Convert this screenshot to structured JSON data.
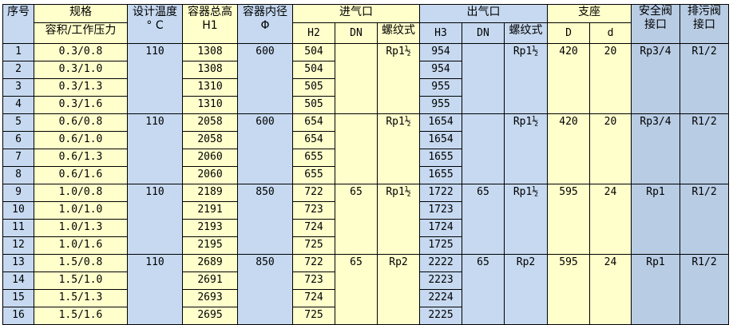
{
  "header": {
    "seq": "序号",
    "spec": "规格",
    "spec_sub": "容积/工作压力",
    "temp": "设计温度",
    "temp_unit": "° C",
    "height": "容器总高",
    "height_sub": "H1",
    "diameter": "容器内径",
    "diameter_sub": "Φ",
    "inlet": "进气口",
    "inlet_h": "H2",
    "inlet_dn": "DN",
    "inlet_thread": "螺纹式",
    "outlet": "出气口",
    "outlet_h": "H3",
    "outlet_dn": "DN",
    "outlet_thread": "螺纹式",
    "support": "支座",
    "support_D": "D",
    "support_d": "d",
    "safety": "安全阀接口",
    "drain": "排污阀接口"
  },
  "colors": {
    "yellow": "#ffffcc",
    "blue": "#c6d9f0",
    "dark_blue": "#b8cce4"
  },
  "groups": [
    {
      "temp": "110",
      "diameter": "600",
      "inlet_dn": "",
      "inlet_thread": "Rp1½",
      "outlet_dn": "",
      "outlet_thread": "Rp1½",
      "D": "420",
      "d": "20",
      "safety": "Rp3/4",
      "drain": "R1/2",
      "rows": [
        {
          "seq": "1",
          "spec": "0.3/0.8",
          "h1": "1308",
          "h2": "504",
          "h3": "954"
        },
        {
          "seq": "2",
          "spec": "0.3/1.0",
          "h1": "1308",
          "h2": "504",
          "h3": "954"
        },
        {
          "seq": "3",
          "spec": "0.3/1.3",
          "h1": "1310",
          "h2": "505",
          "h3": "955"
        },
        {
          "seq": "4",
          "spec": "0.3/1.6",
          "h1": "1310",
          "h2": "505",
          "h3": "955"
        }
      ]
    },
    {
      "temp": "110",
      "diameter": "600",
      "inlet_dn": "",
      "inlet_thread": "Rp1½",
      "outlet_dn": "",
      "outlet_thread": "Rp1½",
      "D": "420",
      "d": "20",
      "safety": "Rp3/4",
      "drain": "R1/2",
      "rows": [
        {
          "seq": "5",
          "spec": "0.6/0.8",
          "h1": "2058",
          "h2": "654",
          "h3": "1654"
        },
        {
          "seq": "6",
          "spec": "0.6/1.0",
          "h1": "2058",
          "h2": "654",
          "h3": "1654"
        },
        {
          "seq": "7",
          "spec": "0.6/1.3",
          "h1": "2060",
          "h2": "655",
          "h3": "1655"
        },
        {
          "seq": "8",
          "spec": "0.6/1.6",
          "h1": "2060",
          "h2": "655",
          "h3": "1655"
        }
      ]
    },
    {
      "temp": "110",
      "diameter": "850",
      "inlet_dn": "65",
      "inlet_thread": "Rp1½",
      "outlet_dn": "65",
      "outlet_thread": "Rp1½",
      "D": "595",
      "d": "24",
      "safety": "Rp1",
      "drain": "R1/2",
      "rows": [
        {
          "seq": "9",
          "spec": "1.0/0.8",
          "h1": "2189",
          "h2": "722",
          "h3": "1722"
        },
        {
          "seq": "10",
          "spec": "1.0/1.0",
          "h1": "2191",
          "h2": "723",
          "h3": "1723"
        },
        {
          "seq": "11",
          "spec": "1.0/1.3",
          "h1": "2193",
          "h2": "724",
          "h3": "1724"
        },
        {
          "seq": "12",
          "spec": "1.0/1.6",
          "h1": "2195",
          "h2": "725",
          "h3": "1725"
        }
      ]
    },
    {
      "temp": "110",
      "diameter": "850",
      "inlet_dn": "65",
      "inlet_thread": "Rp2",
      "outlet_dn": "65",
      "outlet_thread": "Rp2",
      "D": "595",
      "d": "24",
      "safety": "Rp1",
      "drain": "R1/2",
      "rows": [
        {
          "seq": "13",
          "spec": "1.5/0.8",
          "h1": "2689",
          "h2": "722",
          "h3": "2222"
        },
        {
          "seq": "14",
          "spec": "1.5/1.0",
          "h1": "2691",
          "h2": "723",
          "h3": "2223"
        },
        {
          "seq": "15",
          "spec": "1.5/1.3",
          "h1": "2693",
          "h2": "724",
          "h3": "2224"
        },
        {
          "seq": "16",
          "spec": "1.5/1.6",
          "h1": "2695",
          "h2": "725",
          "h3": "2225"
        }
      ]
    }
  ]
}
